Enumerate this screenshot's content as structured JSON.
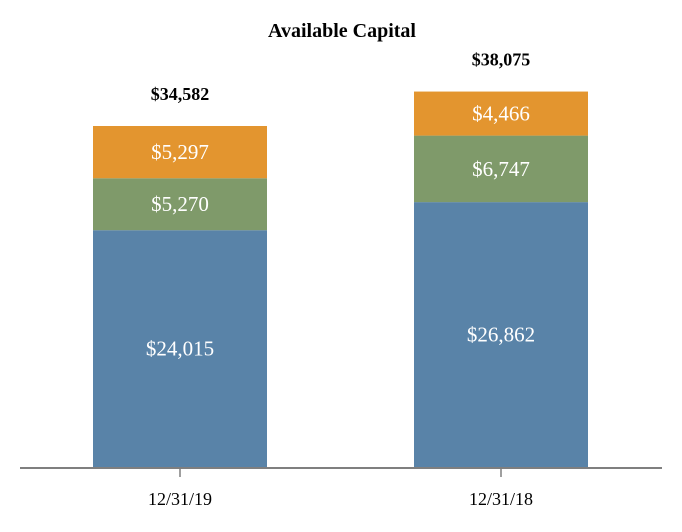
{
  "chart_data": {
    "type": "bar",
    "stacked": true,
    "title": "Available Capital",
    "categories": [
      "12/31/19",
      "12/31/18"
    ],
    "totals": [
      "$34,582",
      "$38,075"
    ],
    "series": [
      {
        "values": [
          24015,
          26862
        ],
        "labels": [
          "$24,015",
          "$26,862"
        ],
        "color": "#5983a8"
      },
      {
        "values": [
          5270,
          6747
        ],
        "labels": [
          "$5,270",
          "$6,747"
        ],
        "color": "#7f9a6a"
      },
      {
        "values": [
          5297,
          4466
        ],
        "labels": [
          "$5,297",
          "$4,466"
        ],
        "color": "#e3952f"
      }
    ],
    "xlabel": "",
    "ylabel": "",
    "ylim": [
      0,
      40000
    ],
    "grid": false,
    "legend": "none"
  }
}
